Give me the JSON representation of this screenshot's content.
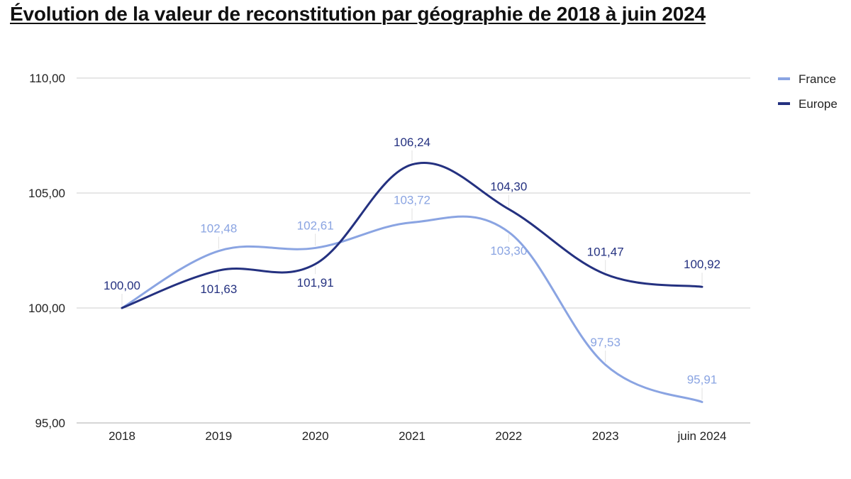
{
  "chart_data": {
    "type": "line",
    "title": "Évolution de la valeur de reconstitution par géographie de 2018 à juin 2024",
    "xlabel": "",
    "ylabel": "",
    "categories": [
      "2018",
      "2019",
      "2020",
      "2021",
      "2022",
      "2023",
      "juin 2024"
    ],
    "ylim": [
      95,
      110
    ],
    "yticks": [
      95,
      100,
      105,
      110
    ],
    "ytick_labels": [
      "95,00",
      "100,00",
      "105,00",
      "110,00"
    ],
    "grid": true,
    "legend_position": "top-right",
    "series": [
      {
        "name": "France",
        "color": "#8aa4e2",
        "values": [
          100.0,
          102.48,
          102.61,
          103.72,
          103.3,
          97.53,
          95.91
        ],
        "labels": [
          "100,00",
          "102,48",
          "102,61",
          "103,72",
          "103,30",
          "97,53",
          "95,91"
        ]
      },
      {
        "name": "Europe",
        "color": "#243180",
        "values": [
          100.0,
          101.63,
          101.91,
          106.24,
          104.3,
          101.47,
          100.92
        ],
        "labels": [
          "100,00",
          "101,63",
          "101,91",
          "106,24",
          "104,30",
          "101,47",
          "100,92"
        ]
      }
    ]
  }
}
